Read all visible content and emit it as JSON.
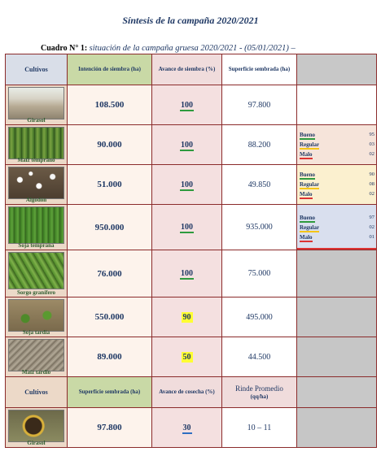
{
  "title": "Síntesis de la campaña 2020/2021",
  "subtitle": {
    "label": "Cuadro N° 1:",
    "text": "situación de la campaña gruesa 2020/2021 - (05/01/2021) –"
  },
  "header1": {
    "cultivos": "Cultivos",
    "intencion": "Intención de siembra (ha)",
    "avance": "Avance de siembra (%)",
    "superficie": "Superficie sembrada (ha)"
  },
  "rows": [
    {
      "cultivo": "Girasol",
      "intencion": "108.500",
      "avance": "100",
      "superficie": "97.800"
    },
    {
      "cultivo": "Maíz temprano",
      "intencion": "90.000",
      "avance": "100",
      "superficie": "88.200",
      "cond": [
        {
          "k": "Bueno",
          "v": "95"
        },
        {
          "k": "Regular",
          "v": "03"
        },
        {
          "k": "Malo",
          "v": "02"
        }
      ]
    },
    {
      "cultivo": "Algodón",
      "intencion": "51.000",
      "avance": "100",
      "superficie": "49.850",
      "cond": [
        {
          "k": "Bueno",
          "v": "90"
        },
        {
          "k": "Regular",
          "v": "08"
        },
        {
          "k": "Malo",
          "v": "02"
        }
      ]
    },
    {
      "cultivo": "Soja temprana",
      "intencion": "950.000",
      "avance": "100",
      "superficie": "935.000",
      "cond": [
        {
          "k": "Bueno",
          "v": "97"
        },
        {
          "k": "Regular",
          "v": "02"
        },
        {
          "k": "Malo",
          "v": "01"
        }
      ]
    },
    {
      "cultivo": "Sorgo granífero",
      "intencion": "76.000",
      "avance": "100",
      "superficie": "75.000"
    },
    {
      "cultivo": "Soja tardía",
      "intencion": "550.000",
      "avance": "90",
      "superficie": "495.000"
    },
    {
      "cultivo": "Maíz tardío",
      "intencion": "89.000",
      "avance": "50",
      "superficie": "44.500"
    }
  ],
  "header2": {
    "cultivos": "Cultivos",
    "superficie": "Superficie sembrada (ha)",
    "cosecha": "Avance de cosecha (%)",
    "rinde": "Rinde Promedio",
    "rinde_unit": "(qq/ha)"
  },
  "harvest_rows": [
    {
      "cultivo": "Girasol",
      "superficie": "97.800",
      "cosecha": "30",
      "rinde": "10 – 11"
    }
  ],
  "colors": {
    "header_green": "#c9d9a6",
    "header_pink": "#f0dcdc",
    "border": "#8b2b2b",
    "highlight_yellow": "#ffff33"
  }
}
